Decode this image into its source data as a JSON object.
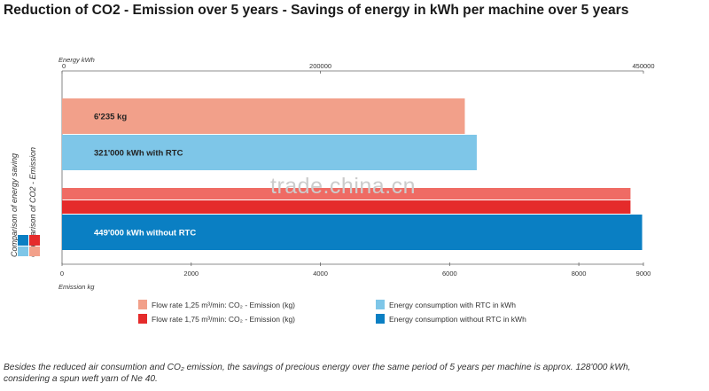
{
  "title": "Reduction of CO2 - Emission over 5 years - Savings of energy in kWh per machine over 5 years",
  "watermark": "trade.china.cn",
  "side_label": {
    "line1": "Comparison of energy saving",
    "line2": "Comparison of CO2 - Emission"
  },
  "legend": [
    {
      "label": "Flow rate 1,25 m³/min: CO₂ - Emission (kg)",
      "color": "#f2a08a"
    },
    {
      "label": "Energy consumption with RTC in kWh",
      "color": "#7ec6e8"
    },
    {
      "label": "Flow rate 1,75 m³/min: CO₂ - Emission (kg)",
      "color": "#e52b2b"
    },
    {
      "label": "Energy consumption without RTC in kWh",
      "color": "#0a7fc3"
    }
  ],
  "footnote": {
    "line1": "Besides the reduced air consumtion and CO₂ emission, the savings of precious energy over the same period of 5 years per machine is approx. 128'000 kWh,",
    "line2": "considering a spun weft yarn of Ne 40."
  },
  "chart_data": {
    "type": "bar",
    "orientation": "horizontal",
    "title": "Reduction of CO2 - Emission over 5 years - Savings of energy in kWh per machine over 5 years",
    "top_axis": {
      "label": "Energy kWh",
      "ticks": [
        "0",
        "200000",
        "450000"
      ],
      "range": [
        0,
        450000
      ]
    },
    "bottom_axis": {
      "label": "Emission kg",
      "ticks": [
        "0",
        "2000",
        "4000",
        "6000",
        "8000",
        "9000"
      ],
      "range": [
        0,
        9000
      ]
    },
    "bars": [
      {
        "series": "Flow rate 1,25 m³/min: CO₂ - Emission (kg)",
        "value": 6235,
        "unit": "kg",
        "axis": "bottom",
        "label": "6'235 kg",
        "color": "#f2a08a",
        "label_color": "#222222"
      },
      {
        "series": "Energy consumption with RTC in kWh",
        "value": 321000,
        "unit": "kWh",
        "axis": "top",
        "label": "321'000 kWh with RTC",
        "color": "#7ec6e8",
        "label_color": "#222222"
      },
      {
        "series": "Flow rate 1,75 m³/min: CO₂ - Emission (kg)",
        "value": 8800,
        "unit": "kg",
        "axis": "bottom",
        "label": "",
        "color": "#e52b2b",
        "label_color": "#ffffff"
      },
      {
        "series": "Energy consumption without RTC in kWh",
        "value": 449000,
        "unit": "kWh",
        "axis": "top",
        "label": "449'000 kWh without RTC",
        "color": "#0a7fc3",
        "label_color": "#ffffff"
      }
    ],
    "grid": false,
    "legend_position": "bottom"
  }
}
